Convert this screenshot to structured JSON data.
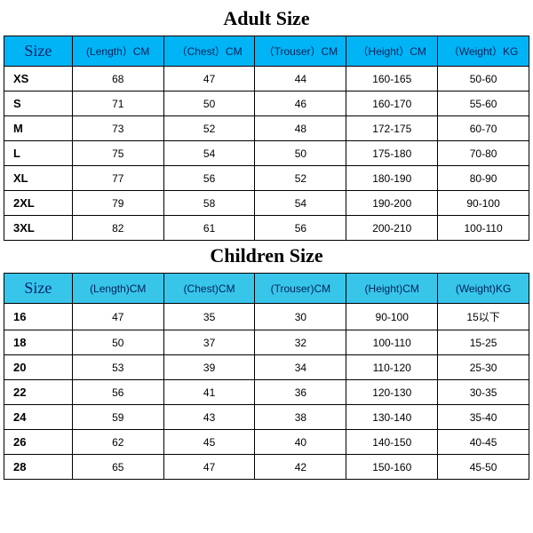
{
  "adult": {
    "title": "Adult Size",
    "header_bg": "#00b4f5",
    "columns": [
      "Size",
      "(Length）CM",
      "（Chest）CM",
      "（Trouser）CM",
      "（Height）CM",
      "（Weight）KG"
    ],
    "rows": [
      [
        "XS",
        "68",
        "47",
        "44",
        "160-165",
        "50-60"
      ],
      [
        "S",
        "71",
        "50",
        "46",
        "160-170",
        "55-60"
      ],
      [
        "M",
        "73",
        "52",
        "48",
        "172-175",
        "60-70"
      ],
      [
        "L",
        "75",
        "54",
        "50",
        "175-180",
        "70-80"
      ],
      [
        "XL",
        "77",
        "56",
        "52",
        "180-190",
        "80-90"
      ],
      [
        "2XL",
        "79",
        "58",
        "54",
        "190-200",
        "90-100"
      ],
      [
        "3XL",
        "82",
        "61",
        "56",
        "200-210",
        "100-110"
      ]
    ]
  },
  "children": {
    "title": "Children Size",
    "header_bg": "#38c5ea",
    "columns": [
      "Size",
      "(Length)CM",
      "(Chest)CM",
      "(Trouser)CM",
      "(Height)CM",
      "(Weight)KG"
    ],
    "rows": [
      [
        "16",
        "47",
        "35",
        "30",
        "90-100",
        "15以下"
      ],
      [
        "18",
        "50",
        "37",
        "32",
        "100-110",
        "15-25"
      ],
      [
        "20",
        "53",
        "39",
        "34",
        "110-120",
        "25-30"
      ],
      [
        "22",
        "56",
        "41",
        "36",
        "120-130",
        "30-35"
      ],
      [
        "24",
        "59",
        "43",
        "38",
        "130-140",
        "35-40"
      ],
      [
        "26",
        "62",
        "45",
        "40",
        "140-150",
        "40-45"
      ],
      [
        "28",
        "65",
        "47",
        "42",
        "150-160",
        "45-50"
      ]
    ]
  }
}
